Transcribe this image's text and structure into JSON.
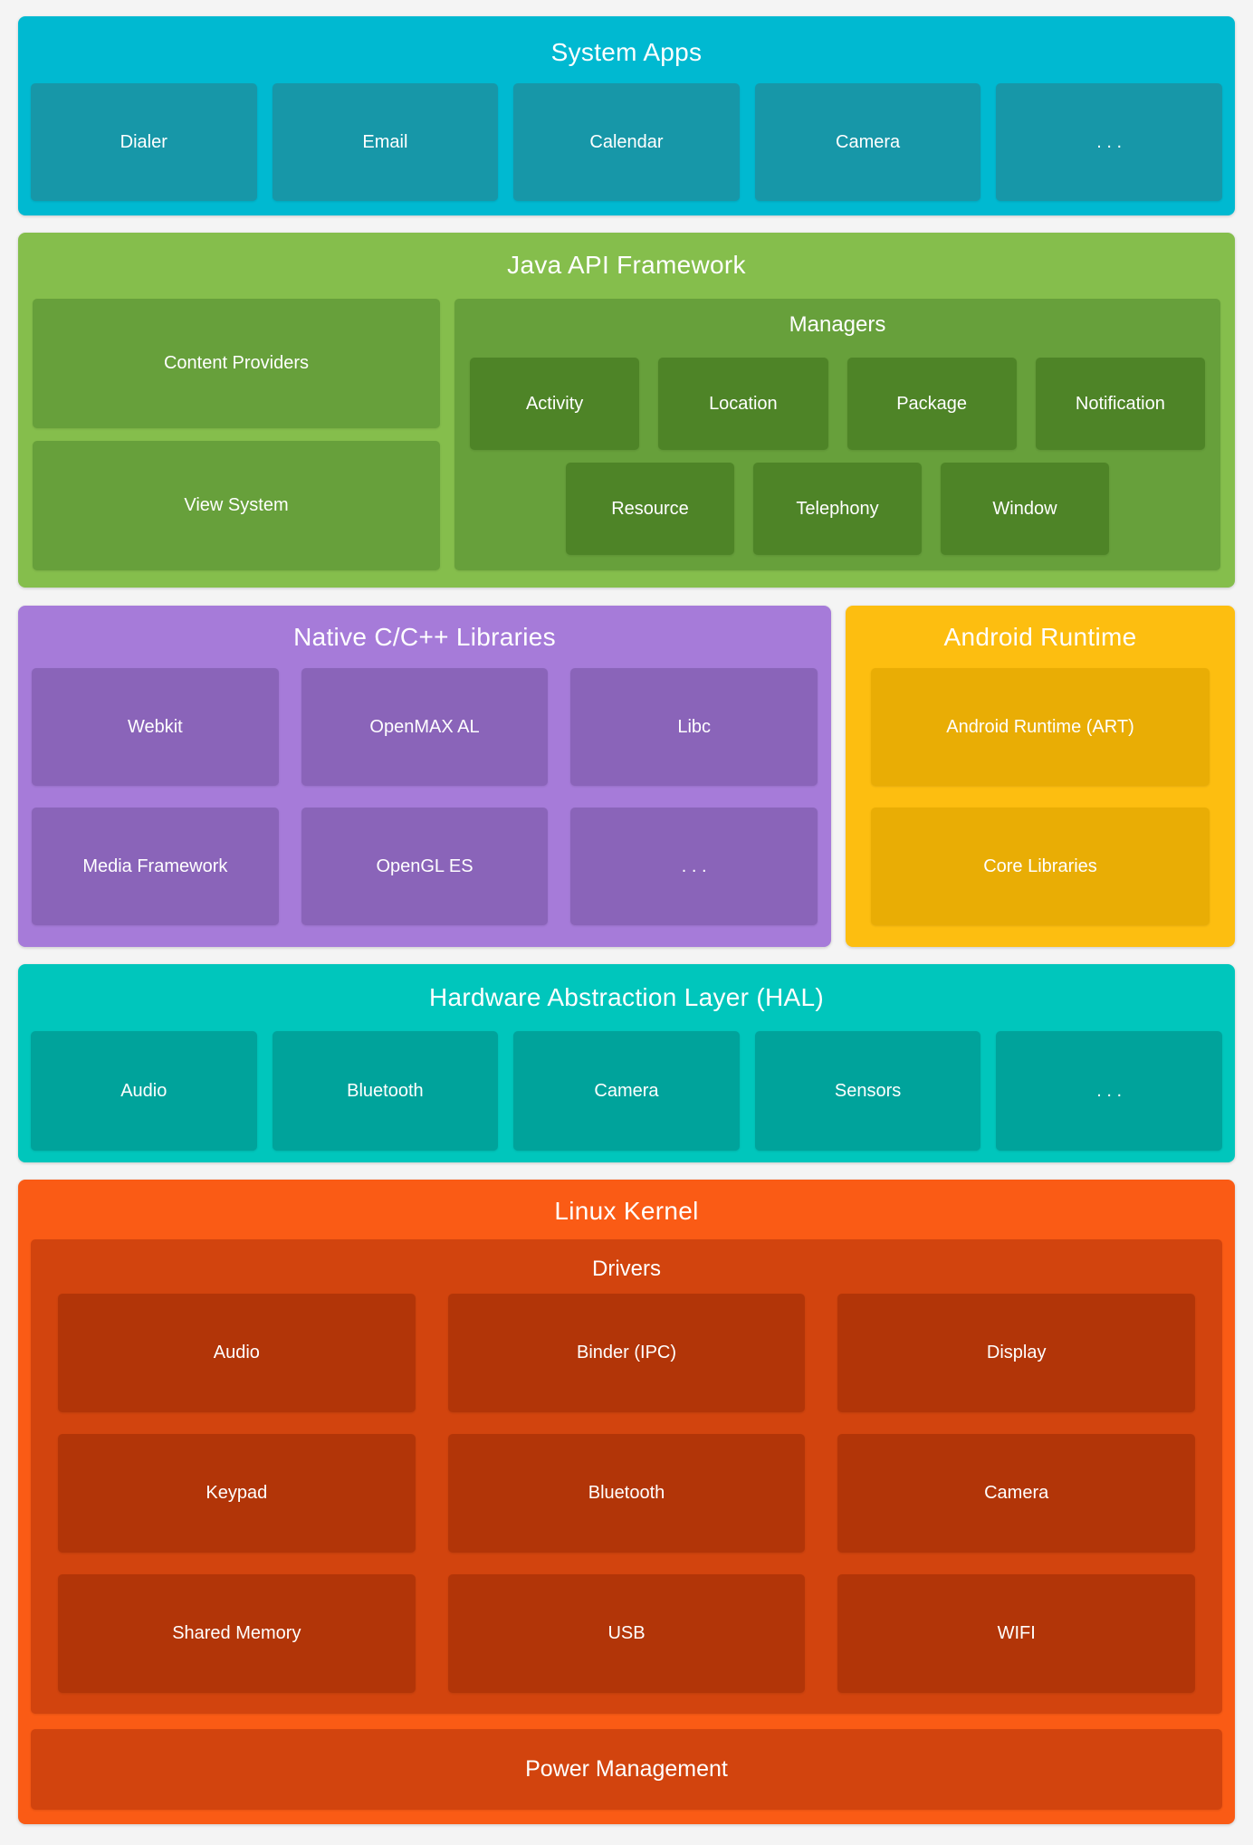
{
  "colors": {
    "page_bg": "#F4F4F4",
    "text": "#FFFFFF",
    "system_apps_bg": "#00B9D1",
    "system_apps_box": "#1797A8",
    "java_bg": "#85BE4C",
    "java_mid": "#67A03B",
    "java_inner": "#4E8427",
    "native_bg": "#A67BD9",
    "native_box": "#8A64B9",
    "runtime_bg": "#FDBE10",
    "runtime_box": "#E9AD05",
    "hal_bg": "#00C6BC",
    "hal_box": "#00A39B",
    "kernel_bg": "#FA5B15",
    "kernel_mid": "#D2440E",
    "kernel_box": "#B23508"
  },
  "system_apps": {
    "title": "System Apps",
    "items": [
      "Dialer",
      "Email",
      "Calendar",
      "Camera",
      ". . ."
    ]
  },
  "java_api": {
    "title": "Java API Framework",
    "content_providers": "Content Providers",
    "view_system": "View System",
    "managers": {
      "title": "Managers",
      "row1": [
        "Activity",
        "Location",
        "Package",
        "Notification"
      ],
      "row2": [
        "Resource",
        "Telephony",
        "Window"
      ]
    }
  },
  "native_libs": {
    "title": "Native C/C++ Libraries",
    "row1": [
      "Webkit",
      "OpenMAX AL",
      "Libc"
    ],
    "row2": [
      "Media Framework",
      "OpenGL ES",
      ". . ."
    ]
  },
  "android_runtime": {
    "title": "Android Runtime",
    "items": [
      "Android Runtime (ART)",
      "Core Libraries"
    ]
  },
  "hal": {
    "title": "Hardware Abstraction Layer (HAL)",
    "items": [
      "Audio",
      "Bluetooth",
      "Camera",
      "Sensors",
      ". . ."
    ]
  },
  "linux_kernel": {
    "title": "Linux Kernel",
    "drivers": {
      "title": "Drivers",
      "row1": [
        "Audio",
        "Binder (IPC)",
        "Display"
      ],
      "row2": [
        "Keypad",
        "Bluetooth",
        "Camera"
      ],
      "row3": [
        "Shared Memory",
        "USB",
        "WIFI"
      ]
    },
    "power_management": "Power Management"
  }
}
